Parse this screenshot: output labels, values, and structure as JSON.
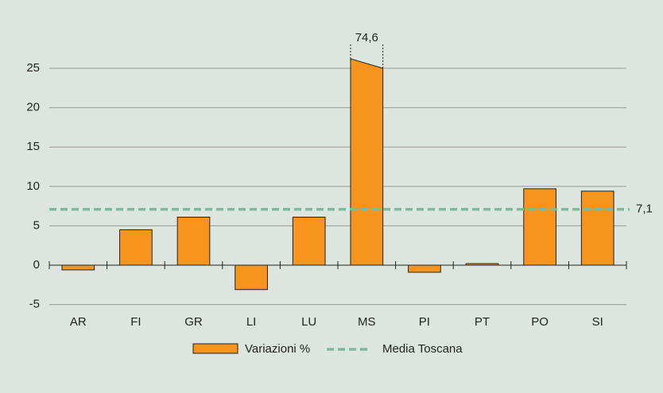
{
  "chart_data": {
    "type": "bar",
    "categories": [
      "AR",
      "FI",
      "GR",
      "LI",
      "LU",
      "MS",
      "PI",
      "PT",
      "PO",
      "SI"
    ],
    "series": [
      {
        "name": "Variazioni %",
        "color": "#f7941d",
        "values": [
          -0.6,
          4.5,
          6.1,
          -3.1,
          6.1,
          74.6,
          -0.9,
          0.2,
          9.7,
          9.4
        ],
        "value_labels": [
          null,
          null,
          null,
          null,
          null,
          "74,6",
          null,
          null,
          null,
          null
        ]
      }
    ],
    "reference_line": {
      "name": "Media Toscana",
      "value": 7.1,
      "label": "7,1",
      "color": "#7fb89b"
    },
    "ylim": [
      -5,
      25
    ],
    "yticks": [
      -5,
      0,
      5,
      10,
      15,
      20,
      25
    ],
    "grid": true
  }
}
